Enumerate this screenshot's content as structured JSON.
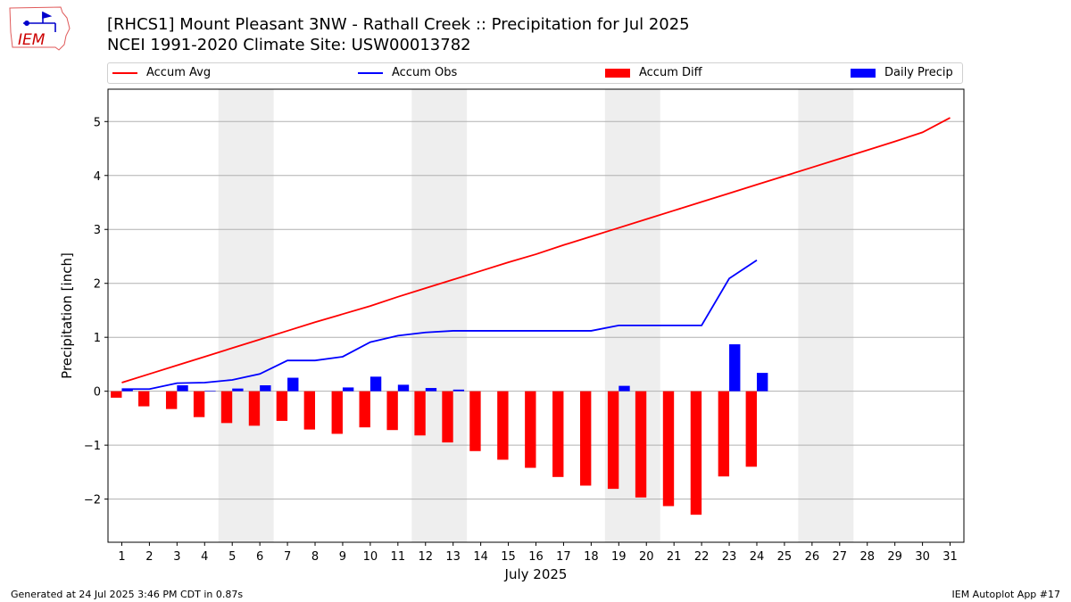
{
  "header": {
    "title_line1": "[RHCS1] Mount Pleasant 3NW - Rathall Creek :: Precipitation for Jul 2025",
    "title_line2": "NCEI 1991-2020 Climate Site: USW00013782",
    "logo_text": "IEM"
  },
  "footer": {
    "left": "Generated at 24 Jul 2025 3:46 PM CDT in 0.87s",
    "right": "IEM Autoplot App #17"
  },
  "chart_data": {
    "type": "bar",
    "xlabel": "July 2025",
    "ylabel": "Precipitation [inch]",
    "xlim": [
      0.5,
      31.5
    ],
    "ylim": [
      -2.8,
      5.6
    ],
    "yticks": [
      -2,
      -1,
      0,
      1,
      2,
      3,
      4,
      5
    ],
    "ytick_labels": [
      "−2",
      "−1",
      "0",
      "1",
      "2",
      "3",
      "4",
      "5"
    ],
    "x": [
      1,
      2,
      3,
      4,
      5,
      6,
      7,
      8,
      9,
      10,
      11,
      12,
      13,
      14,
      15,
      16,
      17,
      18,
      19,
      20,
      21,
      22,
      23,
      24,
      25,
      26,
      27,
      28,
      29,
      30,
      31
    ],
    "weekend_spans": [
      [
        4.5,
        6.5
      ],
      [
        11.5,
        13.5
      ],
      [
        18.5,
        20.5
      ],
      [
        25.5,
        27.5
      ]
    ],
    "grid": "horizontal",
    "legend_position": "top",
    "colors": {
      "avg": "#ff0000",
      "obs": "#0000ff",
      "diff": "#ff0000",
      "daily": "#0000ff",
      "shade": "#eeeeee"
    },
    "legend": [
      {
        "key": "accum_avg",
        "label": "Accum Avg",
        "kind": "line",
        "color": "#ff0000"
      },
      {
        "key": "accum_obs",
        "label": "Accum Obs",
        "kind": "line",
        "color": "#0000ff"
      },
      {
        "key": "accum_diff",
        "label": "Accum Diff",
        "kind": "bar",
        "color": "#ff0000"
      },
      {
        "key": "daily_precip",
        "label": "Daily Precip",
        "kind": "bar",
        "color": "#0000ff"
      }
    ],
    "series": [
      {
        "name": "Accum Avg",
        "type": "line",
        "x": [
          1,
          2,
          3,
          4,
          5,
          6,
          7,
          8,
          9,
          10,
          11,
          12,
          13,
          14,
          15,
          16,
          17,
          18,
          19,
          20,
          21,
          22,
          23,
          24,
          25,
          26,
          27,
          28,
          29,
          30,
          31
        ],
        "values": [
          0.16,
          0.32,
          0.48,
          0.64,
          0.8,
          0.96,
          1.12,
          1.28,
          1.43,
          1.58,
          1.75,
          1.91,
          2.07,
          2.23,
          2.39,
          2.54,
          2.71,
          2.87,
          3.03,
          3.19,
          3.35,
          3.51,
          3.67,
          3.83,
          3.99,
          4.15,
          4.31,
          4.47,
          4.63,
          4.8,
          5.07
        ]
      },
      {
        "name": "Accum Obs",
        "type": "line",
        "x": [
          1,
          2,
          3,
          4,
          5,
          6,
          7,
          8,
          9,
          10,
          11,
          12,
          13,
          14,
          15,
          16,
          17,
          18,
          19,
          20,
          21,
          22,
          23,
          24
        ],
        "values": [
          0.04,
          0.04,
          0.15,
          0.16,
          0.21,
          0.32,
          0.57,
          0.57,
          0.64,
          0.91,
          1.03,
          1.09,
          1.12,
          1.12,
          1.12,
          1.12,
          1.12,
          1.12,
          1.22,
          1.22,
          1.22,
          1.22,
          2.09,
          2.43
        ]
      },
      {
        "name": "Accum Diff",
        "type": "bar",
        "x": [
          1,
          2,
          3,
          4,
          5,
          6,
          7,
          8,
          9,
          10,
          11,
          12,
          13,
          14,
          15,
          16,
          17,
          18,
          19,
          20,
          21,
          22,
          23,
          24
        ],
        "values": [
          -0.12,
          -0.28,
          -0.33,
          -0.48,
          -0.59,
          -0.64,
          -0.55,
          -0.71,
          -0.79,
          -0.67,
          -0.72,
          -0.82,
          -0.95,
          -1.11,
          -1.27,
          -1.42,
          -1.59,
          -1.75,
          -1.81,
          -1.97,
          -2.13,
          -2.29,
          -1.58,
          -1.4
        ]
      },
      {
        "name": "Daily Precip",
        "type": "bar",
        "x": [
          1,
          2,
          3,
          4,
          5,
          6,
          7,
          8,
          9,
          10,
          11,
          12,
          13,
          14,
          15,
          16,
          17,
          18,
          19,
          20,
          21,
          22,
          23,
          24
        ],
        "values": [
          0.04,
          0.0,
          0.11,
          0.01,
          0.05,
          0.11,
          0.25,
          0.0,
          0.07,
          0.27,
          0.12,
          0.06,
          0.03,
          0.0,
          0.0,
          0.0,
          0.0,
          0.0,
          0.1,
          0.0,
          0.0,
          0.0,
          0.87,
          0.34
        ]
      }
    ]
  }
}
